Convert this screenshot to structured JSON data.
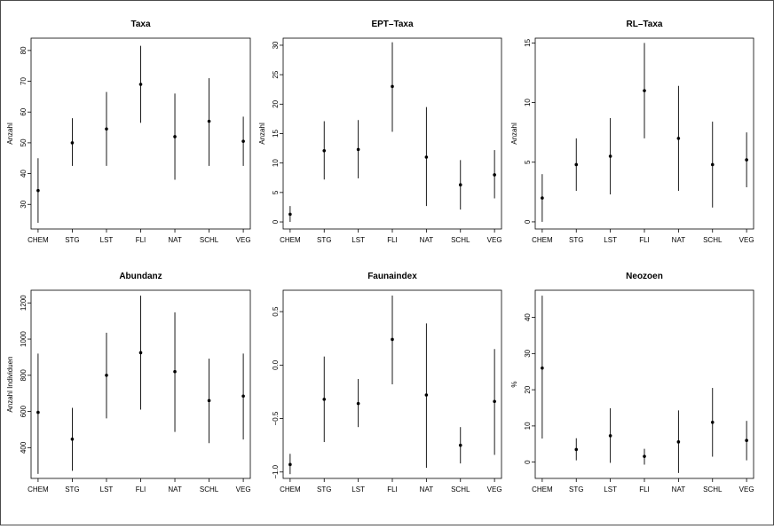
{
  "chart_data": [
    {
      "type": "errorbar",
      "title": "Taxa",
      "ylabel": "Anzahl",
      "categories": [
        "CHEM",
        "STG",
        "LST",
        "FLI",
        "NAT",
        "SCHL",
        "VEG"
      ],
      "values": [
        34.5,
        50.0,
        54.5,
        69.0,
        52.0,
        57.0,
        50.5
      ],
      "lower": [
        24.0,
        42.5,
        42.5,
        56.5,
        38.0,
        42.5,
        42.5
      ],
      "upper": [
        45.0,
        58.0,
        66.5,
        81.5,
        66.0,
        71.0,
        58.5
      ],
      "yticks": [
        30,
        40,
        50,
        60,
        70,
        80
      ],
      "ylim": [
        22,
        84
      ]
    },
    {
      "type": "errorbar",
      "title": "EPT–Taxa",
      "ylabel": "Anzahl",
      "categories": [
        "CHEM",
        "STG",
        "LST",
        "FLI",
        "NAT",
        "SCHL",
        "VEG"
      ],
      "values": [
        1.3,
        12.1,
        12.3,
        23.0,
        11.0,
        6.3,
        8.0
      ],
      "lower": [
        0.0,
        7.2,
        7.4,
        15.3,
        2.7,
        2.1,
        4.0
      ],
      "upper": [
        2.7,
        17.1,
        17.3,
        30.5,
        19.5,
        10.5,
        12.2
      ],
      "yticks": [
        0,
        5,
        10,
        15,
        20,
        25,
        30
      ],
      "ylim": [
        -1.2,
        31.2
      ]
    },
    {
      "type": "errorbar",
      "title": "RL–Taxa",
      "ylabel": "Anzahl",
      "categories": [
        "CHEM",
        "STG",
        "LST",
        "FLI",
        "NAT",
        "SCHL",
        "VEG"
      ],
      "values": [
        2.0,
        4.8,
        5.5,
        11.0,
        7.0,
        4.8,
        5.2
      ],
      "lower": [
        0.0,
        2.6,
        2.3,
        7.0,
        2.6,
        1.2,
        2.9
      ],
      "upper": [
        4.0,
        7.0,
        8.7,
        15.0,
        11.4,
        8.4,
        7.5
      ],
      "yticks": [
        0,
        5,
        10,
        15
      ],
      "ylim": [
        -0.6,
        15.4
      ]
    },
    {
      "type": "errorbar",
      "title": "Abundanz",
      "ylabel": "Anzahl Individuen",
      "categories": [
        "CHEM",
        "STG",
        "LST",
        "FLI",
        "NAT",
        "SCHL",
        "VEG"
      ],
      "values": [
        595,
        447,
        800,
        925,
        820,
        660,
        685
      ],
      "lower": [
        255,
        272,
        562,
        610,
        487,
        425,
        445
      ],
      "upper": [
        920,
        620,
        1035,
        1240,
        1148,
        892,
        920
      ],
      "yticks": [
        400,
        600,
        800,
        1000,
        1200
      ],
      "ylim": [
        230,
        1270
      ]
    },
    {
      "type": "errorbar",
      "title": "Faunaindex",
      "ylabel": "",
      "categories": [
        "CHEM",
        "STG",
        "LST",
        "FLI",
        "NAT",
        "SCHL",
        "VEG"
      ],
      "values": [
        -0.93,
        -0.32,
        -0.36,
        0.24,
        -0.28,
        -0.75,
        -0.34
      ],
      "lower": [
        -1.02,
        -0.72,
        -0.58,
        -0.18,
        -0.96,
        -0.92,
        -0.84
      ],
      "upper": [
        -0.83,
        0.08,
        -0.13,
        0.65,
        0.39,
        -0.58,
        0.15
      ],
      "yticks": [
        -1.0,
        -0.5,
        0.0,
        0.5
      ],
      "yticklabels": [
        "−1.0",
        "−0.5",
        "0.0",
        "0.5"
      ],
      "ylim": [
        -1.06,
        0.7
      ]
    },
    {
      "type": "errorbar",
      "title": "Neozoen",
      "ylabel": "%",
      "categories": [
        "CHEM",
        "STG",
        "LST",
        "FLI",
        "NAT",
        "SCHL",
        "VEG"
      ],
      "values": [
        26.0,
        3.5,
        7.3,
        1.6,
        5.6,
        11.0,
        6.0
      ],
      "lower": [
        6.5,
        0.5,
        -0.2,
        -0.7,
        -3.0,
        1.5,
        0.5
      ],
      "upper": [
        46.0,
        6.6,
        14.9,
        3.7,
        14.3,
        20.5,
        11.4
      ],
      "yticks": [
        0,
        10,
        20,
        30,
        40
      ],
      "ylim": [
        -4.5,
        47.5
      ]
    }
  ]
}
